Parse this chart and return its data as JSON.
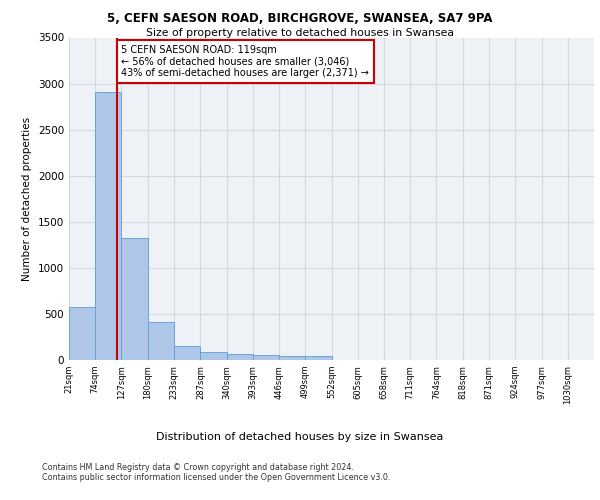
{
  "title_line1": "5, CEFN SAESON ROAD, BIRCHGROVE, SWANSEA, SA7 9PA",
  "title_line2": "Size of property relative to detached houses in Swansea",
  "xlabel": "Distribution of detached houses by size in Swansea",
  "ylabel": "Number of detached properties",
  "bar_edges": [
    21,
    74,
    127,
    180,
    233,
    287,
    340,
    393,
    446,
    499,
    552,
    605,
    658,
    711,
    764,
    818,
    871,
    924,
    977,
    1030,
    1083
  ],
  "bar_heights": [
    570,
    2910,
    1320,
    410,
    155,
    90,
    65,
    55,
    45,
    45,
    0,
    0,
    0,
    0,
    0,
    0,
    0,
    0,
    0,
    0
  ],
  "bar_color": "#aec6e8",
  "bar_edgecolor": "#5a9fd4",
  "grid_color": "#d0d8e4",
  "bg_color": "#eef2f7",
  "property_line_x": 119,
  "annotation_text": "5 CEFN SAESON ROAD: 119sqm\n← 56% of detached houses are smaller (3,046)\n43% of semi-detached houses are larger (2,371) →",
  "annotation_box_color": "#ffffff",
  "annotation_box_edgecolor": "#cc0000",
  "vline_color": "#cc0000",
  "ylim": [
    0,
    3500
  ],
  "yticks": [
    0,
    500,
    1000,
    1500,
    2000,
    2500,
    3000,
    3500
  ],
  "footer_line1": "Contains HM Land Registry data © Crown copyright and database right 2024.",
  "footer_line2": "Contains public sector information licensed under the Open Government Licence v3.0."
}
